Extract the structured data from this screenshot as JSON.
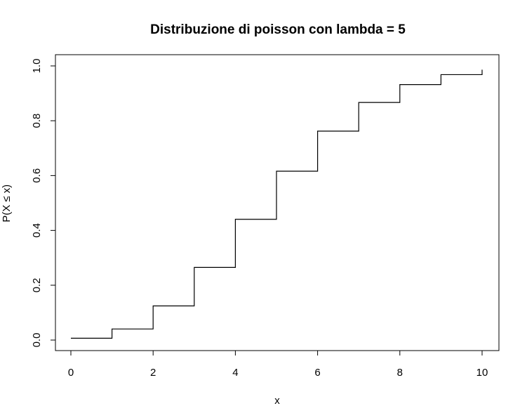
{
  "chart_data": {
    "type": "line",
    "title": "Distribuzione di poisson con lambda = 5",
    "xlabel": "x",
    "ylabel": "P(X ≤ x)",
    "xlim": [
      0,
      10
    ],
    "ylim": [
      0,
      1
    ],
    "x_ticks": [
      "0",
      "2",
      "4",
      "6",
      "8",
      "10"
    ],
    "y_ticks": [
      "0.0",
      "0.2",
      "0.4",
      "0.6",
      "0.8",
      "1.0"
    ],
    "step": "post",
    "series": [
      {
        "x": [
          0,
          1,
          2,
          3,
          4,
          5,
          6,
          7,
          8,
          9,
          10
        ],
        "y": [
          0.0067,
          0.0404,
          0.1247,
          0.265,
          0.4405,
          0.616,
          0.7622,
          0.8666,
          0.9319,
          0.9682,
          0.9863
        ]
      }
    ],
    "grid": false,
    "line_color": "#000000"
  }
}
